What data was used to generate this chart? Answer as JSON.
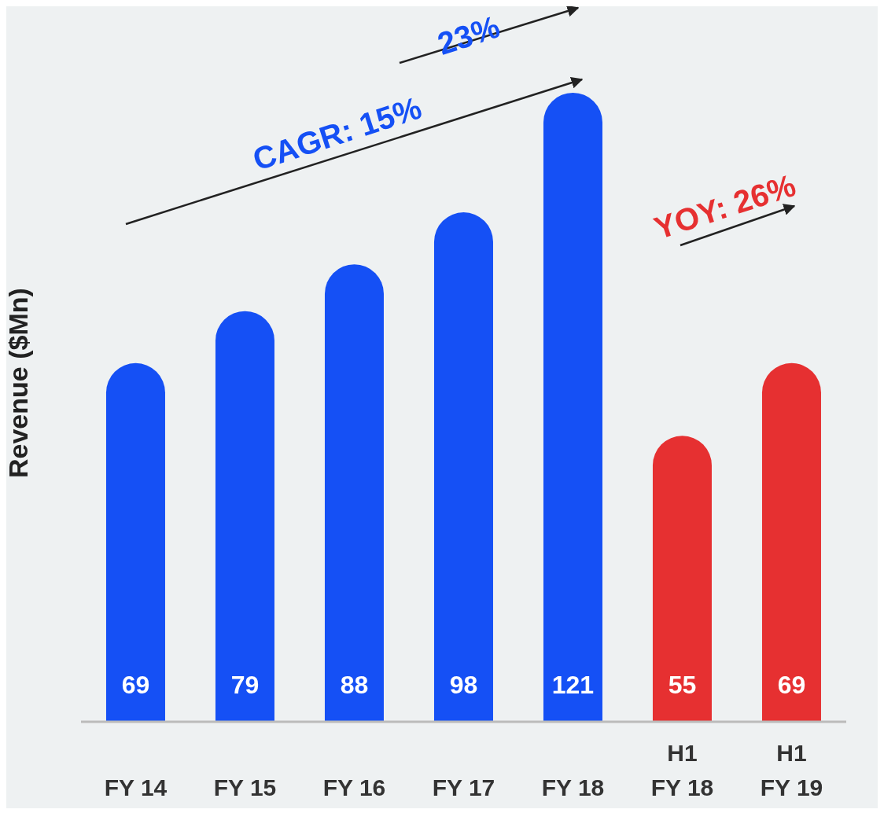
{
  "chart_data": {
    "type": "bar",
    "ylabel": "Revenue ($Mn)",
    "categories": [
      "FY 14",
      "FY 15",
      "FY 16",
      "FY 17",
      "FY 18",
      "H1\nFY 18",
      "H1\nFY 19"
    ],
    "values": [
      69,
      79,
      88,
      98,
      121,
      55,
      69
    ],
    "colors": [
      "#1550f5",
      "#1550f5",
      "#1550f5",
      "#1550f5",
      "#1550f5",
      "#e63031",
      "#e63031"
    ],
    "data_labels": true,
    "annotations": [
      "23%",
      "CAGR: 15%",
      "YOY: 26%"
    ]
  }
}
